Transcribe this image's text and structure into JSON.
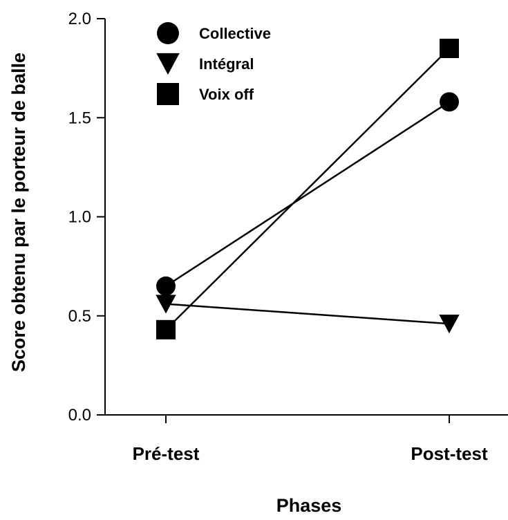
{
  "chart_data": {
    "type": "line",
    "title": "",
    "xlabel": "Phases",
    "ylabel": "Score obtenu par le porteur de balle",
    "categories": [
      "Pré-test",
      "Post-test"
    ],
    "ylim": [
      0,
      2
    ],
    "yticks": [
      "0.0",
      "0.5",
      "1.0",
      "1.5",
      "2.0"
    ],
    "grid": false,
    "legend_position": "top-left",
    "series": [
      {
        "name": "Collective",
        "marker": "circle",
        "color": "#000000",
        "values": [
          0.65,
          1.58
        ]
      },
      {
        "name": "Intégral",
        "marker": "triangle-down",
        "color": "#000000",
        "values": [
          0.56,
          0.46
        ]
      },
      {
        "name": "Voix off",
        "marker": "square",
        "color": "#000000",
        "values": [
          0.43,
          1.85
        ]
      }
    ]
  }
}
